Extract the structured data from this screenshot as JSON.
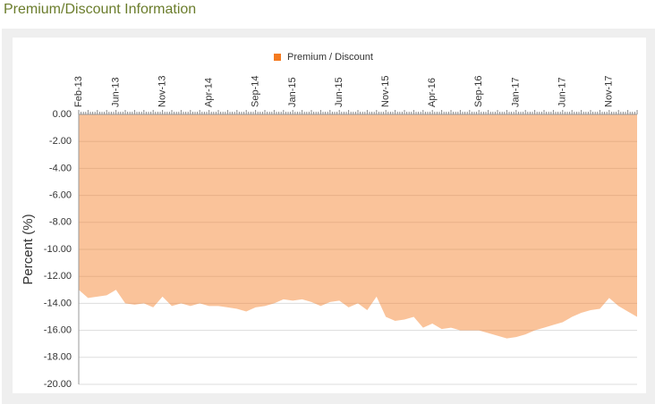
{
  "header": {
    "title": "Premium/Discount Information"
  },
  "chart_data": {
    "type": "area",
    "y_label": "Percent (%)",
    "categories": [
      "Feb-13",
      null,
      null,
      null,
      "Jun-13",
      null,
      null,
      null,
      null,
      "Nov-13",
      null,
      null,
      null,
      null,
      "Apr-14",
      null,
      null,
      null,
      null,
      "Sep-14",
      null,
      null,
      null,
      "Jan-15",
      null,
      null,
      null,
      null,
      "Jun-15",
      null,
      null,
      null,
      null,
      "Nov-15",
      null,
      null,
      null,
      null,
      "Apr-16",
      null,
      null,
      null,
      null,
      "Sep-16",
      null,
      null,
      null,
      "Jan-17",
      null,
      null,
      null,
      null,
      "Jun-17",
      null,
      null,
      null,
      null,
      "Nov-17",
      null,
      null,
      null
    ],
    "series": [
      {
        "name": "Premium / Discount",
        "color": "#f47a20",
        "values": [
          -13.0,
          -13.6,
          -13.5,
          -13.4,
          -13.0,
          -14.0,
          -14.1,
          -14.0,
          -14.3,
          -13.5,
          -14.2,
          -14.0,
          -14.2,
          -14.0,
          -14.2,
          -14.2,
          -14.3,
          -14.4,
          -14.6,
          -14.3,
          -14.2,
          -14.0,
          -13.7,
          -13.8,
          -13.7,
          -13.9,
          -14.2,
          -13.9,
          -13.8,
          -14.3,
          -14.0,
          -14.5,
          -13.5,
          -15.0,
          -15.3,
          -15.2,
          -15.0,
          -15.8,
          -15.5,
          -15.9,
          -15.8,
          -16.0,
          -16.0,
          -16.0,
          -16.2,
          -16.4,
          -16.6,
          -16.5,
          -16.3,
          -16.0,
          -15.8,
          -15.6,
          -15.4,
          -15.0,
          -14.7,
          -14.5,
          -14.4,
          -13.6,
          -14.2,
          -14.6,
          -15.0
        ]
      }
    ],
    "ylim": [
      -20,
      0
    ],
    "yticks": [
      {
        "value": 0,
        "label": "0.00"
      },
      {
        "value": -2,
        "label": "-2.00"
      },
      {
        "value": -4,
        "label": "-4.00"
      },
      {
        "value": -6,
        "label": "-6.00"
      },
      {
        "value": -8,
        "label": "-8.00"
      },
      {
        "value": -10,
        "label": "-10.00"
      },
      {
        "value": -12,
        "label": "-12.00"
      },
      {
        "value": -14,
        "label": "-14.00"
      },
      {
        "value": -16,
        "label": "-16.00"
      },
      {
        "value": -18,
        "label": "-18.00"
      },
      {
        "value": -20,
        "label": "-20.00"
      }
    ],
    "grid": true
  }
}
